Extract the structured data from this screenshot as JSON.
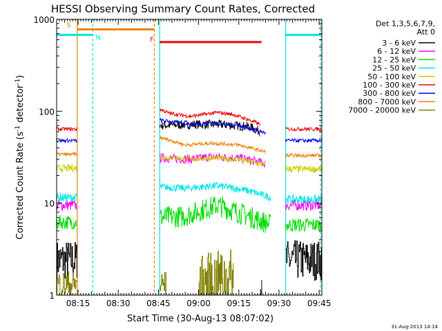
{
  "chart_data": {
    "type": "line",
    "title": "HESSI Observing Summary Count Rates, Corrected",
    "xlabel": "Start Time (30-Aug-13 08:07:02)",
    "ylabel_main": "Corrected Count Rate (s",
    "ylabel_sup1": "-1",
    "ylabel_mid": " detector",
    "ylabel_sup2": "-1",
    "ylabel_end": ")",
    "yscale": "log",
    "ylim": [
      1,
      1000
    ],
    "xlim_minutes": [
      0,
      99
    ],
    "x_ticks": [
      {
        "label": "08:15",
        "min": 8
      },
      {
        "label": "08:30",
        "min": 23
      },
      {
        "label": "08:45",
        "min": 38
      },
      {
        "label": "09:00",
        "min": 53
      },
      {
        "label": "09:15",
        "min": 68
      },
      {
        "label": "09:30",
        "min": 83
      },
      {
        "label": "09:45",
        "min": 98
      }
    ],
    "y_ticks": [
      {
        "label": "1",
        "value": 1
      },
      {
        "label": "10",
        "value": 10
      },
      {
        "label": "100",
        "value": 100
      },
      {
        "label": "1000",
        "value": 1000
      }
    ],
    "legend_header": [
      "Det 1,3,5,6,7,9,",
      "Att 0"
    ],
    "series": [
      {
        "name": "3 - 6 keV",
        "color": "#000000",
        "segments": [
          {
            "x": [
              0,
              7.7
            ],
            "y": [
              2.4,
              2.4
            ],
            "noise": 0.22,
            "style": "square"
          },
          {
            "x": [
              38.5,
              52,
              60,
              72,
              76
            ],
            "y": [
              70,
              72,
              72,
              68,
              60
            ],
            "noise": 0.05
          },
          {
            "x": [
              76,
              76.6
            ],
            "y": [
              1.2,
              1.2
            ],
            "noise": 0.1,
            "style": "square"
          },
          {
            "x": [
              85.5,
              99
            ],
            "y": [
              2.4,
              2.4
            ],
            "noise": 0.22,
            "style": "square"
          }
        ]
      },
      {
        "name": "6 - 12 keV",
        "color": "#ff00ff",
        "segments": [
          {
            "x": [
              0,
              7.7
            ],
            "y": [
              9.5,
              9.5
            ],
            "noise": 0.06
          },
          {
            "x": [
              38.5,
              50,
              58,
              68,
              78
            ],
            "y": [
              31,
              30,
              32,
              31,
              27
            ],
            "noise": 0.05
          },
          {
            "x": [
              85.5,
              99
            ],
            "y": [
              9.5,
              9.5
            ],
            "noise": 0.06
          }
        ]
      },
      {
        "name": "12 - 25 keV",
        "color": "#00dd00",
        "segments": [
          {
            "x": [
              0,
              7.7
            ],
            "y": [
              6.2,
              6.2
            ],
            "noise": 0.08
          },
          {
            "x": [
              38.5,
              48,
              60,
              70,
              80
            ],
            "y": [
              7,
              7.2,
              9.5,
              7.5,
              5.8
            ],
            "noise": 0.12
          },
          {
            "x": [
              85.5,
              99
            ],
            "y": [
              5.8,
              5.8
            ],
            "noise": 0.08
          }
        ]
      },
      {
        "name": "25 - 50 keV",
        "color": "#00e5e5",
        "segments": [
          {
            "x": [
              0,
              7.7
            ],
            "y": [
              11.5,
              11.5
            ],
            "noise": 0.05
          },
          {
            "x": [
              38.5,
              48,
              60,
              70,
              80
            ],
            "y": [
              15,
              14.5,
              15.5,
              14,
              11.5
            ],
            "noise": 0.04
          },
          {
            "x": [
              85.5,
              99
            ],
            "y": [
              11,
              11
            ],
            "noise": 0.05
          }
        ]
      },
      {
        "name": "50 - 100 keV",
        "color": "#cccc00",
        "segments": [
          {
            "x": [
              0,
              7.7
            ],
            "y": [
              24,
              24
            ],
            "noise": 0.04
          },
          {
            "x": [
              38.5,
              50,
              58,
              68,
              78
            ],
            "y": [
              32,
              30,
              31,
              30,
              26
            ],
            "noise": 0.03
          },
          {
            "x": [
              85.5,
              99
            ],
            "y": [
              23.5,
              23.5
            ],
            "noise": 0.04
          }
        ]
      },
      {
        "name": "100 - 300 keV",
        "color": "#ee0000",
        "segments": [
          {
            "x": [
              0,
              7.7
            ],
            "y": [
              64,
              64
            ],
            "noise": 0.02
          },
          {
            "x": [
              38.5,
              42,
              50,
              60,
              66,
              76
            ],
            "y": [
              106,
              95,
              88,
              97,
              92,
              72
            ],
            "noise": 0.02
          },
          {
            "x": [
              85.5,
              99
            ],
            "y": [
              64,
              64
            ],
            "noise": 0.02
          }
        ]
      },
      {
        "name": "300 - 800 keV",
        "color": "#0000ee",
        "segments": [
          {
            "x": [
              0,
              7.7
            ],
            "y": [
              48,
              48
            ],
            "noise": 0.02
          },
          {
            "x": [
              38.5,
              50,
              58,
              68,
              78
            ],
            "y": [
              80,
              72,
              75,
              70,
              58
            ],
            "noise": 0.02
          },
          {
            "x": [
              85.5,
              99
            ],
            "y": [
              48,
              48
            ],
            "noise": 0.02
          }
        ]
      },
      {
        "name": "800 - 7000 keV",
        "color": "#ee8000",
        "segments": [
          {
            "x": [
              0,
              7.7
            ],
            "y": [
              34,
              34
            ],
            "noise": 0.02
          },
          {
            "x": [
              38.5,
              48,
              58,
              68,
              78
            ],
            "y": [
              52,
              43,
              45,
              43,
              36
            ],
            "noise": 0.02
          },
          {
            "x": [
              85.5,
              99
            ],
            "y": [
              33,
              33
            ],
            "noise": 0.02
          }
        ]
      },
      {
        "name": "7000 - 20000 keV",
        "color": "#808000",
        "segments": [
          {
            "x": [
              0,
              7.7
            ],
            "y": [
              1.3,
              1.3
            ],
            "noise": 0.15,
            "style": "square"
          },
          {
            "x": [
              38.5,
              41
            ],
            "y": [
              1.3,
              1.3
            ],
            "noise": 0.15,
            "style": "square"
          },
          {
            "x": [
              53,
              66
            ],
            "y": [
              1.4,
              1.6
            ],
            "noise": 0.3,
            "style": "square"
          }
        ]
      }
    ],
    "flags": [
      {
        "label": "S",
        "color": "#ee8000",
        "y": 776,
        "x": [
          7.7,
          36.5
        ]
      },
      {
        "label": "N",
        "color": "#00e5e5",
        "y": 676,
        "x": [
          0,
          13.5
        ]
      },
      {
        "label": "N",
        "color": "#00e5e5",
        "y": 676,
        "x": [
          85.5,
          99
        ]
      },
      {
        "label": "F",
        "color": "#ee0000",
        "y": 566,
        "x": [
          38.5,
          76.5
        ]
      }
    ],
    "vlines": [
      {
        "x": 7.7,
        "color": "#ee8000",
        "dashed": false
      },
      {
        "x": 13.5,
        "color": "#00e5e5",
        "dashed": true
      },
      {
        "x": 36.5,
        "color": "#ee8000",
        "dashed": true
      },
      {
        "x": 38.5,
        "color": "#00e5e5",
        "dashed": false
      },
      {
        "x": 85.5,
        "color": "#00e5e5",
        "dashed": false
      },
      {
        "x": 98.5,
        "color": "#00e5e5",
        "dashed": true
      }
    ],
    "flag_labels": [
      {
        "text": "S",
        "color": "#ee8000",
        "x": 4.5,
        "y": 820
      },
      {
        "text": "N",
        "color": "#00e5e5",
        "x": 15.5,
        "y": 600
      },
      {
        "text": "F",
        "color": "#ee0000",
        "x": 35.5,
        "y": 570
      }
    ],
    "timestamp": "31-Aug-2013 14:14"
  }
}
